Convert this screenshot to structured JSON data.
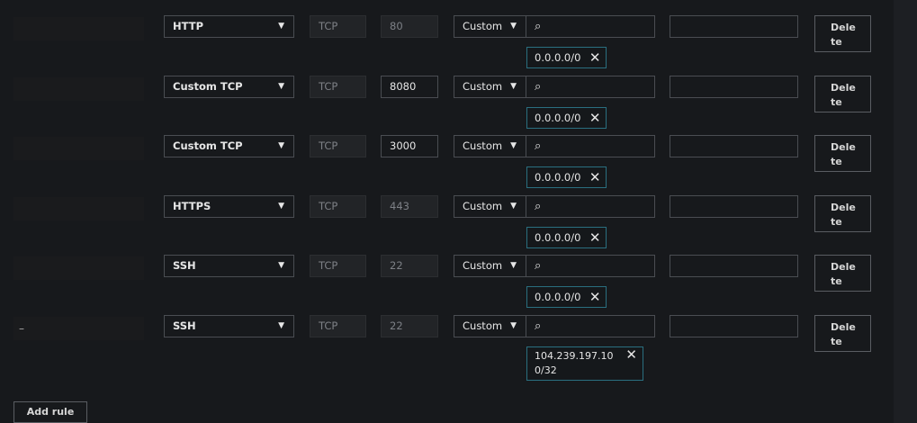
{
  "rules": [
    {
      "rule_id": "",
      "type": "HTTP",
      "protocol": "TCP",
      "port": "80",
      "port_editable": false,
      "source_type": "Custom",
      "source_search": "",
      "description": "",
      "cidr": "0.0.0.0/0",
      "delete_label": "Delete"
    },
    {
      "rule_id": "",
      "type": "Custom TCP",
      "protocol": "TCP",
      "port": "8080",
      "port_editable": true,
      "source_type": "Custom",
      "source_search": "",
      "description": "",
      "cidr": "0.0.0.0/0",
      "delete_label": "Delete"
    },
    {
      "rule_id": "",
      "type": "Custom TCP",
      "protocol": "TCP",
      "port": "3000",
      "port_editable": true,
      "source_type": "Custom",
      "source_search": "",
      "description": "",
      "cidr": "0.0.0.0/0",
      "delete_label": "Delete"
    },
    {
      "rule_id": "",
      "type": "HTTPS",
      "protocol": "TCP",
      "port": "443",
      "port_editable": false,
      "source_type": "Custom",
      "source_search": "",
      "description": "",
      "cidr": "0.0.0.0/0",
      "delete_label": "Delete"
    },
    {
      "rule_id": "",
      "type": "SSH",
      "protocol": "TCP",
      "port": "22",
      "port_editable": false,
      "source_type": "Custom",
      "source_search": "",
      "description": "",
      "cidr": "0.0.0.0/0",
      "delete_label": "Delete"
    },
    {
      "rule_id": "–",
      "type": "SSH",
      "protocol": "TCP",
      "port": "22",
      "port_editable": false,
      "source_type": "Custom",
      "source_search": "",
      "description": "",
      "cidr": "104.239.197.100/32",
      "delete_label": "Delete"
    }
  ],
  "add_rule_label": "Add rule",
  "icons": {
    "dropdown": "caret-down-icon",
    "search": "search-icon",
    "remove": "close-icon"
  }
}
